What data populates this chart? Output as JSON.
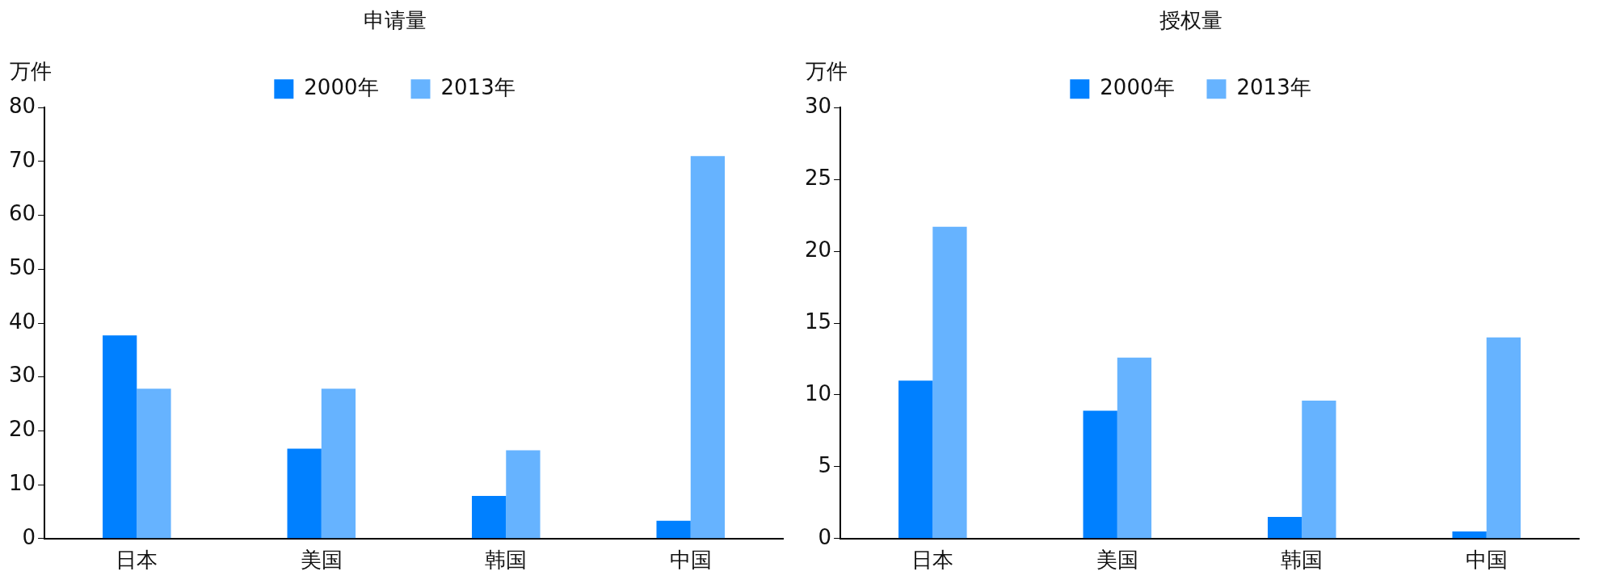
{
  "chart_data": [
    {
      "type": "bar",
      "title": "申请量",
      "ylabel": "万件",
      "categories": [
        "日本",
        "美国",
        "韩国",
        "中国"
      ],
      "legend": "top",
      "series": [
        {
          "name": "2000年",
          "color": "#0080ff",
          "values": [
            37.7,
            16.7,
            7.9,
            3.3
          ]
        },
        {
          "name": "2013年",
          "color": "#66b3ff",
          "values": [
            27.8,
            27.8,
            16.4,
            71.0
          ]
        }
      ],
      "ylim": [
        0,
        80
      ],
      "yticks": [
        0,
        10,
        20,
        30,
        40,
        50,
        60,
        70,
        80
      ]
    },
    {
      "type": "bar",
      "title": "授权量",
      "ylabel": "万件",
      "categories": [
        "日本",
        "美国",
        "韩国",
        "中国"
      ],
      "legend": "top",
      "series": [
        {
          "name": "2000年",
          "color": "#0080ff",
          "values": [
            11.0,
            8.9,
            1.5,
            0.5
          ]
        },
        {
          "name": "2013年",
          "color": "#66b3ff",
          "values": [
            21.7,
            12.6,
            9.6,
            14.0
          ]
        }
      ],
      "ylim": [
        0,
        30
      ],
      "yticks": [
        0,
        5,
        10,
        15,
        20,
        25,
        30
      ]
    }
  ]
}
